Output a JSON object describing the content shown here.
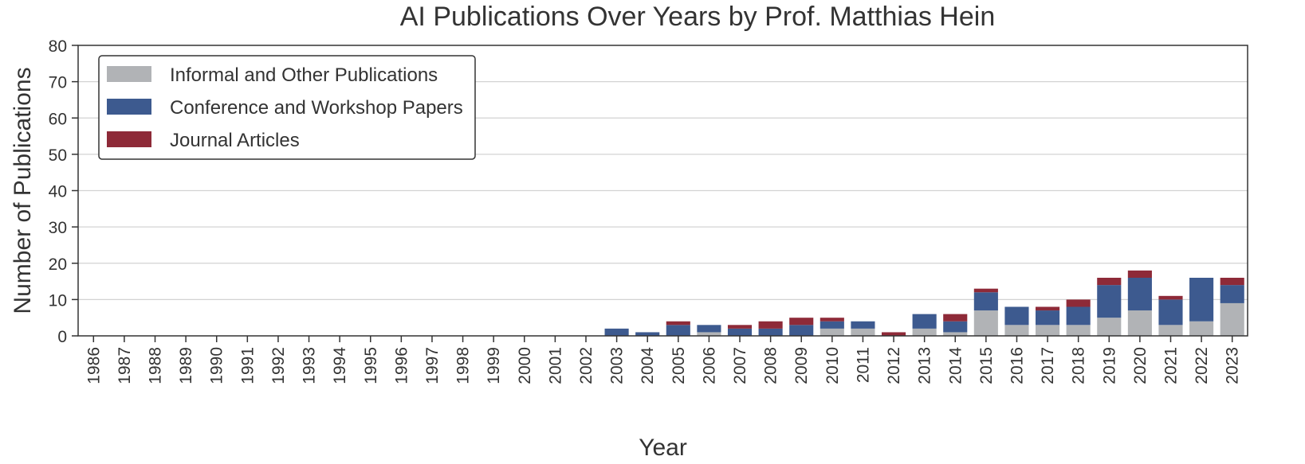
{
  "chart_data": {
    "type": "bar",
    "stacked": true,
    "title": "AI Publications Over Years by Prof. Matthias Hein",
    "xlabel": "Year",
    "ylabel": "Number of Publications",
    "ylim": [
      0,
      80
    ],
    "yticks": [
      0,
      10,
      20,
      30,
      40,
      50,
      60,
      70,
      80
    ],
    "grid": true,
    "legend_position": "top-left",
    "categories": [
      "1986",
      "1987",
      "1988",
      "1989",
      "1990",
      "1991",
      "1992",
      "1993",
      "1994",
      "1995",
      "1996",
      "1997",
      "1998",
      "1999",
      "2000",
      "2001",
      "2002",
      "2003",
      "2004",
      "2005",
      "2006",
      "2007",
      "2008",
      "2009",
      "2010",
      "2011",
      "2012",
      "2013",
      "2014",
      "2015",
      "2016",
      "2017",
      "2018",
      "2019",
      "2020",
      "2021",
      "2022",
      "2023"
    ],
    "series": [
      {
        "name": "Informal and Other Publications",
        "color": "#b1b3b6",
        "values": [
          0,
          0,
          0,
          0,
          0,
          0,
          0,
          0,
          0,
          0,
          0,
          0,
          0,
          0,
          0,
          0,
          0,
          0,
          0,
          0,
          1,
          0,
          0,
          0,
          2,
          2,
          0,
          2,
          1,
          7,
          3,
          3,
          3,
          5,
          7,
          3,
          4,
          9
        ]
      },
      {
        "name": "Conference and Workshop Papers",
        "color": "#3d5a8f",
        "values": [
          0,
          0,
          0,
          0,
          0,
          0,
          0,
          0,
          0,
          0,
          0,
          0,
          0,
          0,
          0,
          0,
          0,
          2,
          1,
          3,
          2,
          2,
          2,
          3,
          2,
          2,
          0,
          4,
          3,
          5,
          5,
          4,
          5,
          9,
          9,
          7,
          12,
          5
        ]
      },
      {
        "name": "Journal Articles",
        "color": "#8e2a38",
        "values": [
          0,
          0,
          0,
          0,
          0,
          0,
          0,
          0,
          0,
          0,
          0,
          0,
          0,
          0,
          0,
          0,
          0,
          0,
          0,
          1,
          0,
          1,
          2,
          2,
          1,
          0,
          1,
          0,
          2,
          1,
          0,
          1,
          2,
          2,
          2,
          1,
          0,
          2
        ]
      }
    ]
  }
}
